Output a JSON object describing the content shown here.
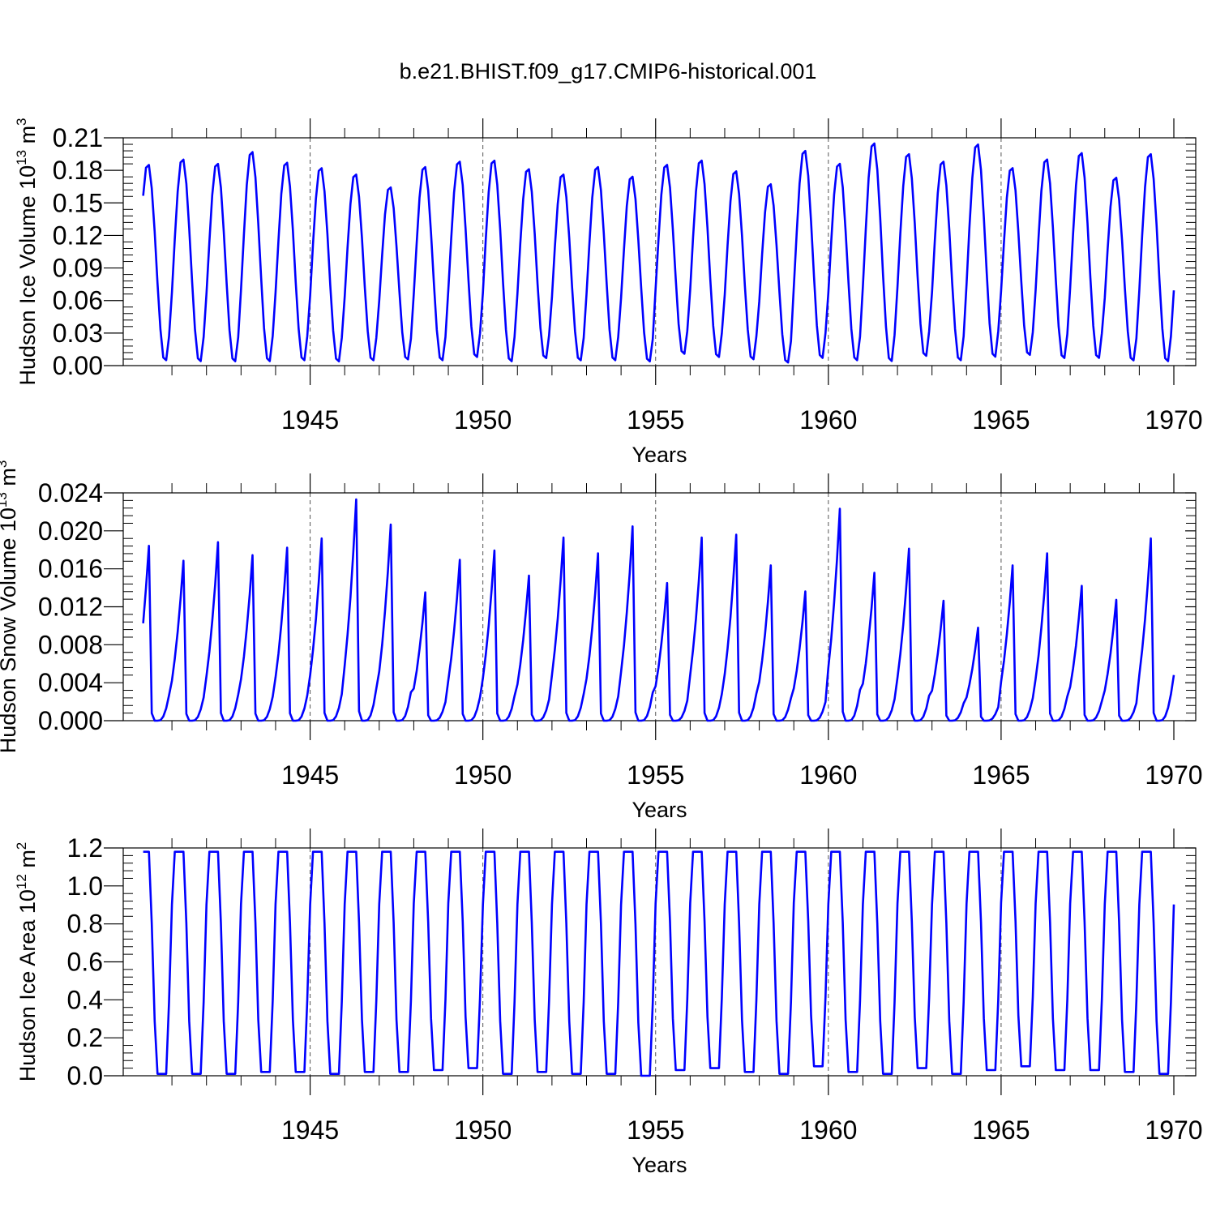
{
  "chart_data": {
    "title": "b.e21.BHIST.f09_g17.CMIP6-historical.001",
    "panels": [
      {
        "type": "line",
        "id": "ice-volume",
        "ylabel": "Hudson Ice Volume 10",
        "ylabel_exp": "13",
        "ylabel_unit": " m",
        "ylabel_unit_exp": "3",
        "xlabel": "Years",
        "xlim": [
          1940.2,
          1970.0
        ],
        "ylim": [
          0,
          0.21
        ],
        "yticks": [
          "0.00",
          "0.03",
          "0.06",
          "0.09",
          "0.12",
          "0.15",
          "0.18",
          "0.21"
        ],
        "xticks": [
          "1945",
          "1950",
          "1955",
          "1960",
          "1965",
          "1970"
        ],
        "color": "#0000ff",
        "annual_peaks": [
          0.187,
          0.192,
          0.188,
          0.199,
          0.189,
          0.184,
          0.178,
          0.166,
          0.185,
          0.19,
          0.191,
          0.183,
          0.178,
          0.185,
          0.176,
          0.187,
          0.191,
          0.181,
          0.169,
          0.2,
          0.188,
          0.207,
          0.197,
          0.19,
          0.206,
          0.184,
          0.192,
          0.198,
          0.175,
          0.197
        ],
        "annual_lows": [
          0.003,
          0.002,
          0.002,
          0.002,
          0.003,
          0.002,
          0.003,
          0.004,
          0.003,
          0.006,
          0.002,
          0.005,
          0.003,
          0.003,
          0.002,
          0.009,
          0.006,
          0.004,
          0.001,
          0.005,
          0.003,
          0.002,
          0.007,
          0.003,
          0.006,
          0.008,
          0.005,
          0.005,
          0.003,
          0.002
        ]
      },
      {
        "type": "line",
        "id": "snow-volume",
        "ylabel": "Hudson Snow Volume 10",
        "ylabel_exp": "13",
        "ylabel_unit": " m",
        "ylabel_unit_exp": "3",
        "xlabel": "Years",
        "xlim": [
          1940.2,
          1970.0
        ],
        "ylim": [
          0,
          0.024
        ],
        "yticks": [
          "0.000",
          "0.004",
          "0.008",
          "0.012",
          "0.016",
          "0.020",
          "0.024"
        ],
        "xticks": [
          "1945",
          "1950",
          "1955",
          "1960",
          "1965",
          "1970"
        ],
        "color": "#0000ff",
        "annual_peaks": [
          0.0188,
          0.0172,
          0.0192,
          0.0178,
          0.0186,
          0.0196,
          0.0238,
          0.0211,
          0.0138,
          0.0173,
          0.0183,
          0.0156,
          0.0197,
          0.018,
          0.0209,
          0.0148,
          0.0197,
          0.02,
          0.0167,
          0.0139,
          0.0228,
          0.0159,
          0.0185,
          0.0129,
          0.01,
          0.0167,
          0.018,
          0.0145,
          0.013,
          0.0196
        ],
        "annual_lows": [
          0,
          0,
          0,
          0,
          0,
          0,
          0,
          0,
          0,
          0,
          0,
          0,
          0,
          0,
          0,
          0,
          0,
          0,
          0,
          0,
          0,
          0,
          0,
          0,
          0,
          0,
          0,
          0,
          0,
          0
        ]
      },
      {
        "type": "line",
        "id": "ice-area",
        "ylabel": "Hudson Ice Area 10",
        "ylabel_exp": "12",
        "ylabel_unit": " m",
        "ylabel_unit_exp": "2",
        "xlabel": "Years",
        "xlim": [
          1940.2,
          1970.0
        ],
        "ylim": [
          0,
          1.2
        ],
        "yticks": [
          "0.0",
          "0.2",
          "0.4",
          "0.6",
          "0.8",
          "1.0",
          "1.2"
        ],
        "xticks": [
          "1945",
          "1950",
          "1955",
          "1960",
          "1965",
          "1970"
        ],
        "color": "#0000ff",
        "annual_peaks": [
          1.18,
          1.18,
          1.18,
          1.18,
          1.18,
          1.18,
          1.18,
          1.18,
          1.18,
          1.18,
          1.18,
          1.18,
          1.18,
          1.18,
          1.18,
          1.18,
          1.18,
          1.18,
          1.18,
          1.18,
          1.18,
          1.18,
          1.18,
          1.18,
          1.18,
          1.18,
          1.18,
          1.18,
          1.18,
          1.18
        ],
        "annual_lows": [
          0.01,
          0.01,
          0.01,
          0.02,
          0.02,
          0.01,
          0.02,
          0.02,
          0.03,
          0.04,
          0.01,
          0.02,
          0.01,
          0.01,
          0.0,
          0.03,
          0.04,
          0.02,
          0.01,
          0.05,
          0.02,
          0.01,
          0.04,
          0.01,
          0.03,
          0.05,
          0.03,
          0.03,
          0.02,
          0.01
        ]
      }
    ]
  }
}
